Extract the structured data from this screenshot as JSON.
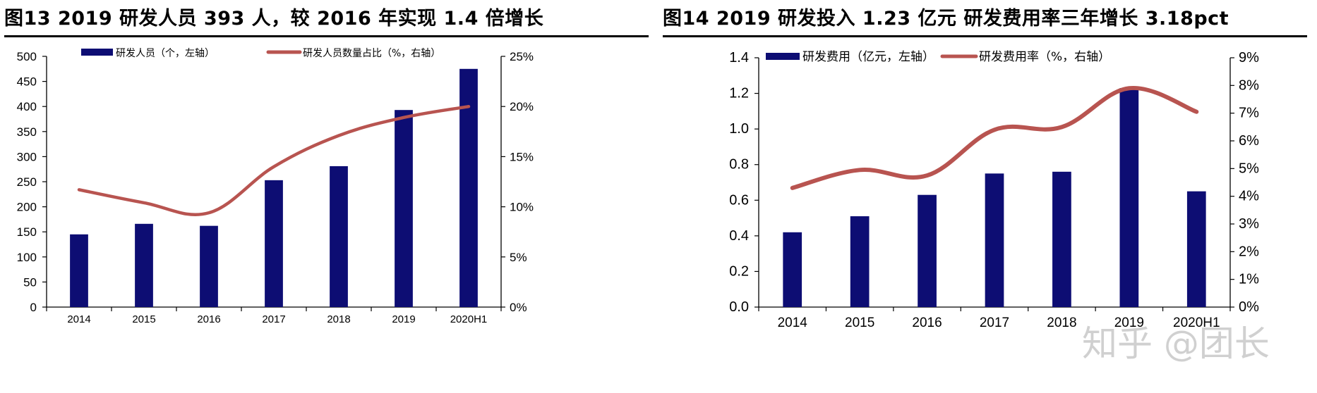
{
  "panels": [
    {
      "title": "图13 2019 研发人员 393 人，较 2016 年实现 1.4 倍增长"
    },
    {
      "title": "图14 2019 研发投入 1.23 亿元 研发费用率三年增长 3.18pct"
    }
  ],
  "watermark": "知乎 @团长",
  "chart_data": [
    {
      "type": "bar",
      "categories": [
        "2014",
        "2015",
        "2016",
        "2017",
        "2018",
        "2019",
        "2020H1"
      ],
      "series": [
        {
          "name": "研发人员（个，左轴）",
          "type": "bar",
          "axis": "left",
          "color": "#0d0d73",
          "values": [
            145,
            166,
            162,
            253,
            281,
            393,
            475
          ]
        },
        {
          "name": "研发人员数量占比（%，右轴）",
          "type": "line",
          "axis": "right",
          "color": "#b85450",
          "values": [
            11.7,
            10.4,
            9.4,
            14.0,
            17.1,
            18.9,
            20.0
          ]
        }
      ],
      "left_axis": {
        "min": 0,
        "max": 500,
        "step": 50,
        "ticks": [
          "0",
          "50",
          "100",
          "150",
          "200",
          "250",
          "300",
          "350",
          "400",
          "450",
          "500"
        ]
      },
      "right_axis": {
        "min": 0,
        "max": 25,
        "step": 5,
        "ticks": [
          "0%",
          "5%",
          "10%",
          "15%",
          "20%",
          "25%"
        ]
      },
      "legend_position": "top"
    },
    {
      "type": "bar",
      "categories": [
        "2014",
        "2015",
        "2016",
        "2017",
        "2018",
        "2019",
        "2020H1"
      ],
      "series": [
        {
          "name": "研发费用（亿元，左轴）",
          "type": "bar",
          "axis": "left",
          "color": "#0d0d73",
          "values": [
            0.42,
            0.51,
            0.63,
            0.75,
            0.76,
            1.23,
            0.65
          ]
        },
        {
          "name": "研发费用率（%，右轴）",
          "type": "line",
          "axis": "right",
          "color": "#b85450",
          "values": [
            4.3,
            4.95,
            4.75,
            6.4,
            6.5,
            7.9,
            7.05
          ]
        }
      ],
      "left_axis": {
        "min": 0,
        "max": 1.4,
        "step": 0.2,
        "ticks": [
          "0.0",
          "0.2",
          "0.4",
          "0.6",
          "0.8",
          "1.0",
          "1.2",
          "1.4"
        ]
      },
      "right_axis": {
        "min": 0,
        "max": 9,
        "step": 1,
        "ticks": [
          "0%",
          "1%",
          "2%",
          "3%",
          "4%",
          "5%",
          "6%",
          "7%",
          "8%",
          "9%"
        ]
      },
      "legend_position": "top"
    }
  ]
}
